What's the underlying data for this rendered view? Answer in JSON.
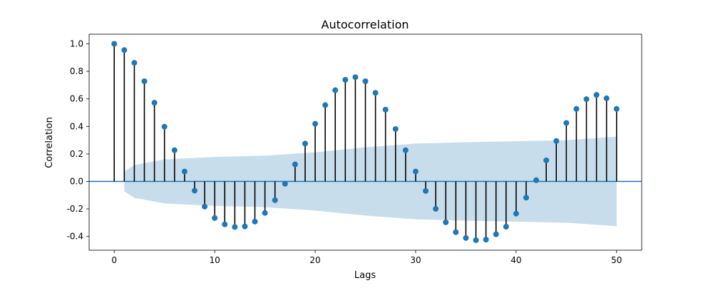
{
  "chart_data": {
    "type": "stem",
    "title": "Autocorrelation",
    "xlabel": "Lags",
    "ylabel": "Correlation",
    "xlim": [
      -2.5,
      52.5
    ],
    "ylim": [
      -0.5,
      1.07
    ],
    "xticks": [
      0,
      10,
      20,
      30,
      40,
      50
    ],
    "yticks": [
      -0.4,
      -0.2,
      0.0,
      0.2,
      0.4,
      0.6,
      0.8,
      1.0
    ],
    "colors": {
      "marker": "#1f77b4",
      "stem": "#000000",
      "band": "#1f77b4",
      "baseline": "#1f77b4"
    },
    "lags": [
      0,
      1,
      2,
      3,
      4,
      5,
      6,
      7,
      8,
      9,
      10,
      11,
      12,
      13,
      14,
      15,
      16,
      17,
      18,
      19,
      20,
      21,
      22,
      23,
      24,
      25,
      26,
      27,
      28,
      29,
      30,
      31,
      32,
      33,
      34,
      35,
      36,
      37,
      38,
      39,
      40,
      41,
      42,
      43,
      44,
      45,
      46,
      47,
      48,
      49,
      50
    ],
    "values": [
      1.0,
      0.955,
      0.862,
      0.728,
      0.572,
      0.398,
      0.227,
      0.072,
      -0.067,
      -0.183,
      -0.266,
      -0.312,
      -0.331,
      -0.327,
      -0.292,
      -0.229,
      -0.136,
      -0.017,
      0.124,
      0.275,
      0.419,
      0.555,
      0.663,
      0.739,
      0.758,
      0.728,
      0.644,
      0.522,
      0.381,
      0.227,
      0.072,
      -0.069,
      -0.199,
      -0.297,
      -0.369,
      -0.411,
      -0.427,
      -0.423,
      -0.384,
      -0.329,
      -0.234,
      -0.118,
      0.009,
      0.153,
      0.294,
      0.425,
      0.527,
      0.598,
      0.629,
      0.604,
      0.527
    ],
    "confidence_band": {
      "lags": [
        1,
        2,
        5,
        10,
        15,
        20,
        25,
        30,
        35,
        40,
        45,
        50
      ],
      "upper": [
        0.072,
        0.119,
        0.16,
        0.178,
        0.187,
        0.212,
        0.248,
        0.275,
        0.285,
        0.292,
        0.3,
        0.325
      ]
    }
  }
}
